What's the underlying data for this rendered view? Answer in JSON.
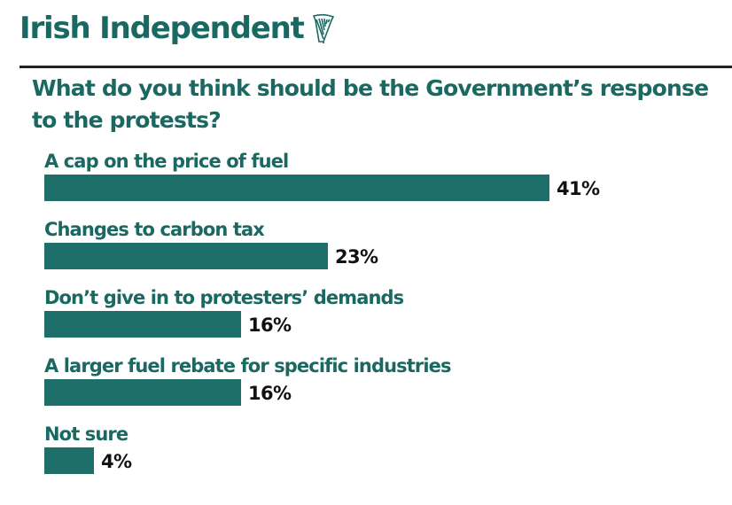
{
  "masthead": {
    "title": "Irish Independent",
    "logo_icon": "harp-icon"
  },
  "colors": {
    "brand": "#1a6862",
    "bar": "#1e6e6a",
    "value_text": "#111111",
    "rule": "#222222"
  },
  "chart_data": {
    "type": "bar",
    "orientation": "horizontal",
    "title": "What do you think should be the Government’s response to the protests?",
    "categories": [
      "A cap on the price of fuel",
      "Changes to carbon tax",
      "Don’t give in to protesters’ demands",
      "A larger fuel rebate for specific industries",
      "Not sure"
    ],
    "values": [
      41,
      23,
      16,
      16,
      4
    ],
    "value_labels": [
      "41%",
      "23%",
      "16%",
      "16%",
      "4%"
    ],
    "unit": "%",
    "xlim": [
      0,
      41
    ],
    "grid": false,
    "legend": "none"
  }
}
